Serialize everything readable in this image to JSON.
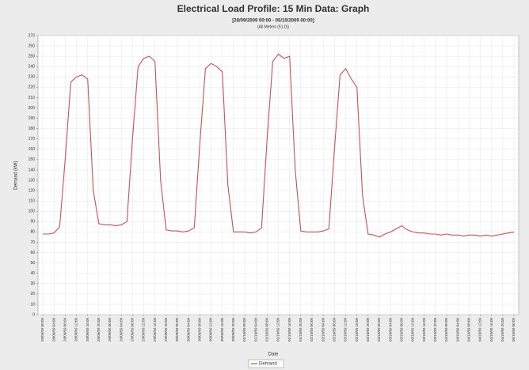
{
  "chart_data": {
    "type": "line",
    "title": "Electrical Load Profile: 15 Min Data: Graph",
    "subtitle": "[28/09/2009 00:00 - 05/10/2009 00:00]",
    "note": "(All Meters (51.0))",
    "y_label": "Demand (kW)",
    "x_label": "Date",
    "categories": [
      "28/09/09 00:00",
      null,
      "28/09/09 04:00",
      null,
      "28/09/09 08:00",
      null,
      "28/09/09 12:00",
      null,
      "28/09/09 16:00",
      null,
      "28/09/09 20:00",
      null,
      "29/09/09 00:00",
      null,
      "29/09/09 04:00",
      null,
      "29/09/09 08:00",
      null,
      "29/09/09 12:00",
      null,
      "29/09/09 16:00",
      null,
      "29/09/09 20:00",
      null,
      "30/09/09 00:00",
      null,
      "30/09/09 04:00",
      null,
      "30/09/09 08:00",
      null,
      "30/09/09 12:00",
      null,
      "30/09/09 16:00",
      null,
      "30/09/09 20:00",
      null,
      "01/10/09 00:00",
      null,
      "01/10/09 04:00",
      null,
      "01/10/09 08:00",
      null,
      "01/10/09 12:00",
      null,
      "01/10/09 16:00",
      null,
      "01/10/09 20:00",
      null,
      "02/10/09 00:00",
      null,
      "02/10/09 04:00",
      null,
      "02/10/09 08:00",
      null,
      "02/10/09 12:00",
      null,
      "02/10/09 16:00",
      null,
      "02/10/09 20:00",
      null,
      "03/10/09 00:00",
      null,
      "03/10/09 04:00",
      null,
      "03/10/09 08:00",
      null,
      "03/10/09 12:00",
      null,
      "03/10/09 16:00",
      null,
      "03/10/09 20:00",
      null,
      "04/10/09 00:00",
      null,
      "04/10/09 04:00",
      null,
      "04/10/09 08:00",
      null,
      "04/10/09 12:00",
      null,
      "04/10/09 16:00",
      null,
      "04/10/09 20:00",
      null,
      "05/10/09 00:00"
    ],
    "series": [
      {
        "name": "Demand",
        "color": "#d0504f",
        "values": [
          78,
          78,
          79,
          85,
          150,
          225,
          230,
          232,
          228,
          120,
          88,
          87,
          87,
          86,
          87,
          90,
          170,
          240,
          248,
          250,
          245,
          130,
          82,
          81,
          81,
          80,
          81,
          84,
          165,
          238,
          243,
          240,
          235,
          125,
          80,
          80,
          80,
          79,
          80,
          84,
          170,
          245,
          252,
          248,
          250,
          140,
          81,
          80,
          80,
          80,
          81,
          83,
          160,
          232,
          238,
          228,
          220,
          115,
          78,
          77,
          75,
          78,
          80,
          83,
          86,
          82,
          80,
          79,
          79,
          78,
          78,
          77,
          78,
          77,
          77,
          76,
          77,
          77,
          76,
          77,
          76,
          77,
          78,
          79,
          80
        ]
      }
    ],
    "ylim": [
      0,
      270
    ],
    "yticks": [
      0,
      10,
      20,
      30,
      40,
      50,
      60,
      70,
      80,
      90,
      100,
      110,
      120,
      130,
      140,
      150,
      160,
      170,
      180,
      190,
      200,
      210,
      220,
      230,
      240,
      250,
      260,
      270
    ],
    "grid": true,
    "legend": "bottom"
  }
}
